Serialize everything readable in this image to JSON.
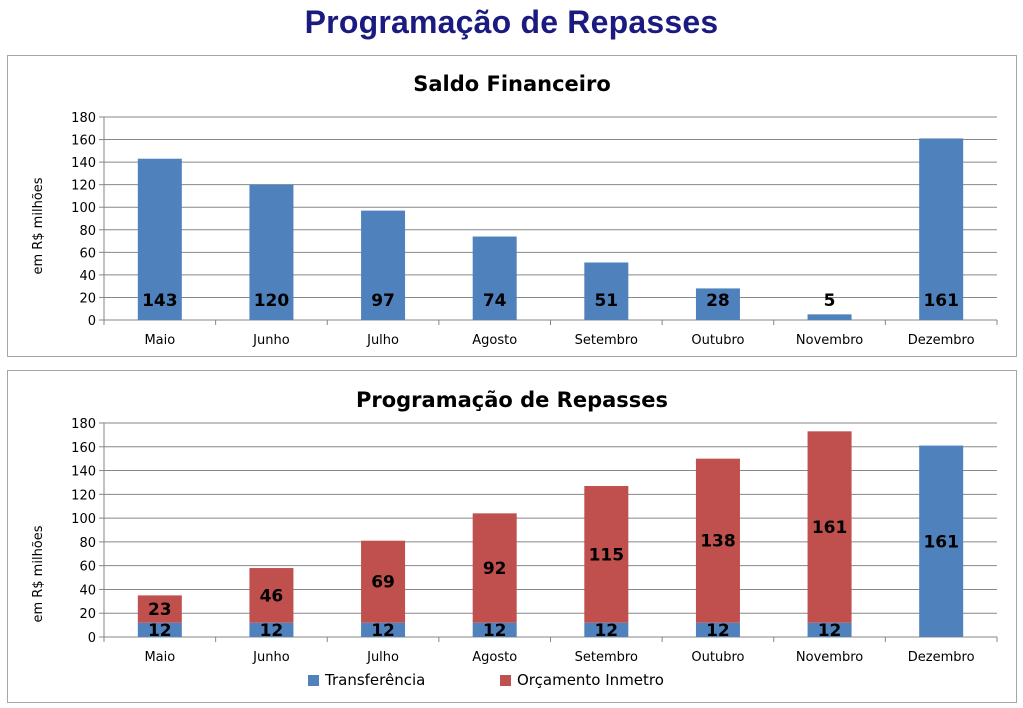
{
  "page": {
    "title": "Programação de Repasses"
  },
  "colors": {
    "blue": "#4f81bd",
    "red": "#c0504d",
    "grid": "#878787",
    "title": "#1a1a80"
  },
  "chart_data": [
    {
      "type": "bar",
      "title": "Saldo Financeiro",
      "ylabel": "em R$ milhões",
      "ylim": [
        0,
        180
      ],
      "yticks": [
        0,
        20,
        40,
        60,
        80,
        100,
        120,
        140,
        160,
        180
      ],
      "grid": true,
      "categories": [
        "Maio",
        "Junho",
        "Julho",
        "Agosto",
        "Setembro",
        "Outubro",
        "Novembro",
        "Dezembro"
      ],
      "values": [
        143,
        120,
        97,
        74,
        51,
        28,
        5,
        161
      ],
      "data_labels": [
        "143",
        "120",
        "97",
        "74",
        "51",
        "28",
        "5",
        "161"
      ]
    },
    {
      "type": "bar",
      "stacked": true,
      "title": "Programação de Repasses",
      "ylabel": "em R$ milhões",
      "ylim": [
        0,
        180
      ],
      "yticks": [
        0,
        20,
        40,
        60,
        80,
        100,
        120,
        140,
        160,
        180
      ],
      "grid": true,
      "legend_position": "bottom",
      "categories": [
        "Maio",
        "Junho",
        "Julho",
        "Agosto",
        "Setembro",
        "Outubro",
        "Novembro",
        "Dezembro"
      ],
      "series": [
        {
          "name": "Transferência",
          "color": "#4f81bd",
          "values": [
            12,
            12,
            12,
            12,
            12,
            12,
            12,
            161
          ]
        },
        {
          "name": "Orçamento Inmetro",
          "color": "#c0504d",
          "values": [
            23,
            46,
            69,
            92,
            115,
            138,
            161,
            0
          ]
        }
      ]
    }
  ]
}
